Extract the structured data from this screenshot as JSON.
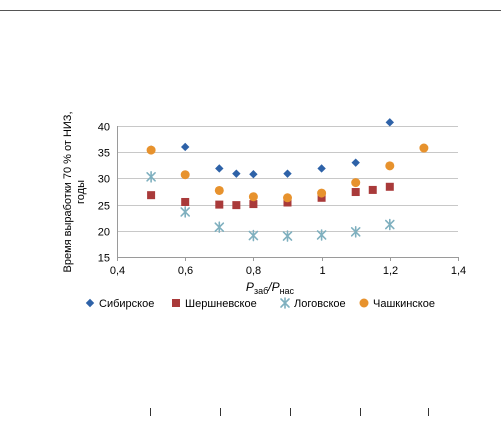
{
  "chart_data": {
    "type": "scatter",
    "xlabel_main": "P",
    "xlabel_sub1": "заб",
    "xlabel_sep": "/P",
    "xlabel_sub2": "нас",
    "ylabel_line1": "Время выработки 70 % от НИЗ,",
    "ylabel_line2": "годы",
    "xlim": [
      0.4,
      1.4
    ],
    "ylim": [
      15,
      40
    ],
    "xticks": [
      "0,4",
      "0,6",
      "0,8",
      "1",
      "1,2",
      "1,4"
    ],
    "xtick_values": [
      0.4,
      0.6,
      0.8,
      1.0,
      1.2,
      1.4
    ],
    "yticks": [
      "15",
      "20",
      "25",
      "30",
      "35",
      "40"
    ],
    "ytick_values": [
      15,
      20,
      25,
      30,
      35,
      40
    ],
    "grid": "horizontal",
    "legend_position": "bottom",
    "series": [
      {
        "name": "Сибирское",
        "marker": "diamond",
        "color": "#2e62a8",
        "points": [
          [
            0.5,
            35.5
          ],
          [
            0.6,
            36.0
          ],
          [
            0.7,
            31.9
          ],
          [
            0.75,
            30.9
          ],
          [
            0.8,
            30.8
          ],
          [
            0.9,
            30.9
          ],
          [
            1.0,
            31.9
          ],
          [
            1.1,
            33.0
          ],
          [
            1.2,
            40.7
          ]
        ]
      },
      {
        "name": "Шершневское",
        "marker": "square",
        "color": "#a93a3a",
        "points": [
          [
            0.5,
            26.8
          ],
          [
            0.6,
            25.5
          ],
          [
            0.7,
            25.0
          ],
          [
            0.75,
            24.9
          ],
          [
            0.8,
            25.1
          ],
          [
            0.9,
            25.4
          ],
          [
            1.0,
            26.3
          ],
          [
            1.1,
            27.4
          ],
          [
            1.15,
            27.8
          ],
          [
            1.2,
            28.4
          ]
        ]
      },
      {
        "name": "Логовское",
        "marker": "asterisk",
        "color": "#7fb0bf",
        "points": [
          [
            0.5,
            30.3
          ],
          [
            0.6,
            23.6
          ],
          [
            0.7,
            20.7
          ],
          [
            0.8,
            19.1
          ],
          [
            0.9,
            19.0
          ],
          [
            1.0,
            19.2
          ],
          [
            1.1,
            19.8
          ],
          [
            1.2,
            21.2
          ]
        ]
      },
      {
        "name": "Чашкинское",
        "marker": "circle",
        "color": "#e7922d",
        "points": [
          [
            0.5,
            35.4
          ],
          [
            0.6,
            30.7
          ],
          [
            0.7,
            27.7
          ],
          [
            0.8,
            26.5
          ],
          [
            0.9,
            26.3
          ],
          [
            1.0,
            27.2
          ],
          [
            1.1,
            29.2
          ],
          [
            1.2,
            32.4
          ],
          [
            1.3,
            35.8
          ]
        ]
      }
    ]
  }
}
